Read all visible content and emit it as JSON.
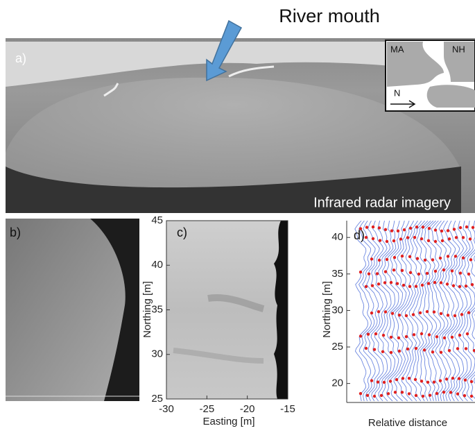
{
  "river_mouth_label": "River mouth",
  "panel_a": {
    "label": "a)",
    "caption": "Infrared radar imagery",
    "inset": {
      "state_left": "MA",
      "state_right": "NH",
      "north": "N"
    }
  },
  "panel_b": {
    "label": "b)"
  },
  "panel_c": {
    "label": "c)",
    "x_axis": {
      "title": "Easting [m]",
      "lim": [
        -30,
        -15
      ],
      "ticks": [
        -30,
        -25,
        -20,
        -15
      ]
    },
    "y_axis": {
      "title": "Northing [m]",
      "lim": [
        25,
        45
      ],
      "ticks": [
        25,
        30,
        35,
        40,
        45
      ]
    }
  },
  "panel_d": {
    "label": "d)",
    "x_axis": {
      "title": "Relative distance"
    },
    "y_axis": {
      "title": "Northing [m]",
      "lim": [
        17.4,
        42.3
      ],
      "ticks": [
        20,
        25,
        30,
        35,
        40
      ]
    }
  }
}
